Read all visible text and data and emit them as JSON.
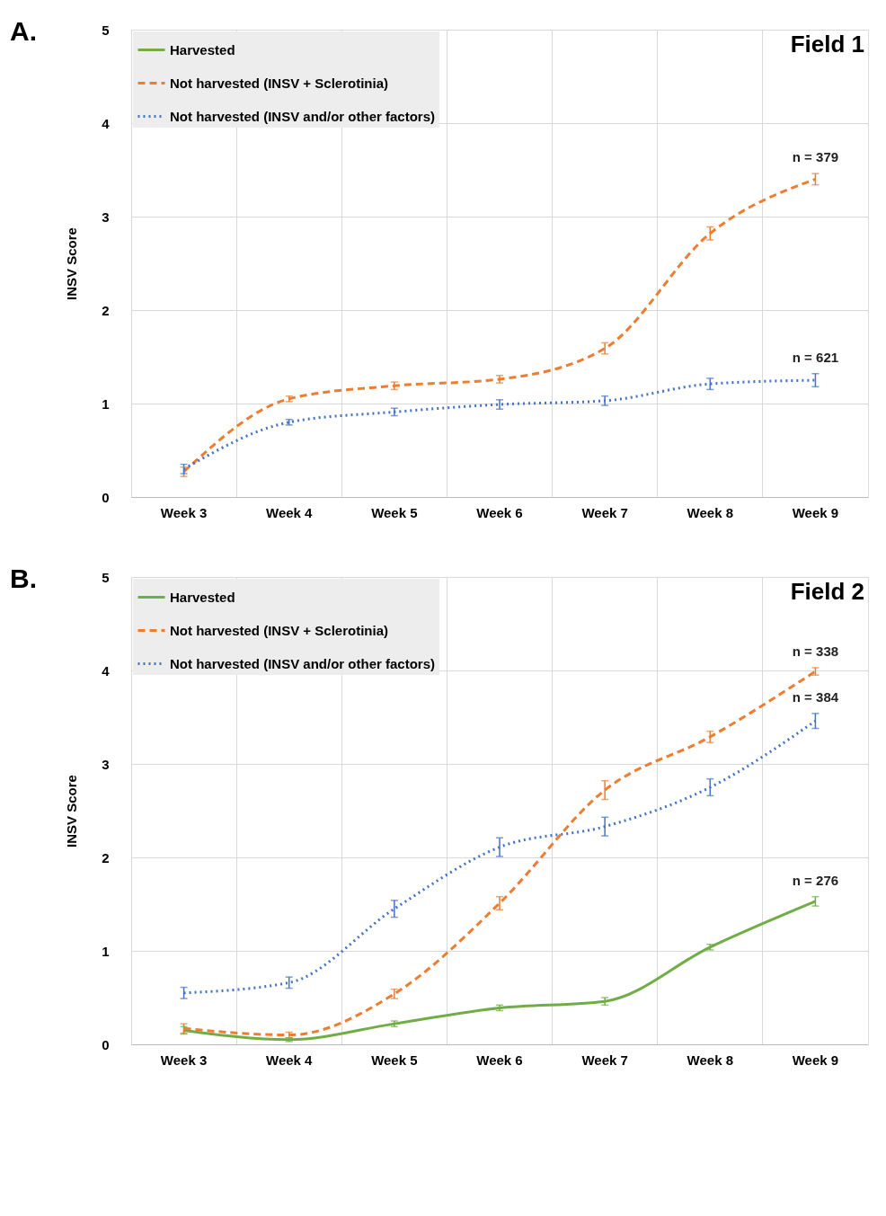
{
  "chart_data": [
    {
      "type": "line",
      "ylabel": "INSV Score",
      "categories": [
        "Week 3",
        "Week 4",
        "Week 5",
        "Week 6",
        "Week 7",
        "Week 8",
        "Week 9"
      ],
      "ylim": [
        0,
        5
      ],
      "yticks": [
        0,
        1,
        2,
        3,
        4,
        5
      ],
      "grid": true,
      "legend": "top left",
      "marker": "none",
      "series": [
        {
          "name": "Harvested",
          "color": "#70ad47",
          "line_style": "solid",
          "values": [
            null,
            null,
            null,
            null,
            null,
            null,
            null
          ]
        },
        {
          "name": "Not harvested (INSV + Sclerotinia)",
          "color": "#ed7d31",
          "line_style": "dashed",
          "values": [
            0.27,
            1.05,
            1.19,
            1.26,
            1.59,
            2.82,
            3.4
          ],
          "errors": [
            0.05,
            0.03,
            0.04,
            0.04,
            0.06,
            0.07,
            0.06
          ]
        },
        {
          "name": "Not harvested (INSV and/or other factors)",
          "color": "#4472c4",
          "line_style": "dotted",
          "values": [
            0.3,
            0.8,
            0.91,
            0.99,
            1.03,
            1.21,
            1.25
          ],
          "errors": [
            0.05,
            0.03,
            0.04,
            0.05,
            0.05,
            0.06,
            0.07
          ]
        }
      ],
      "annotations": [
        "A.",
        "Field 1",
        "n = 379",
        "n = 621"
      ]
    },
    {
      "type": "line",
      "ylabel": "INSV Score",
      "categories": [
        "Week 3",
        "Week 4",
        "Week 5",
        "Week 6",
        "Week 7",
        "Week 8",
        "Week 9"
      ],
      "ylim": [
        0,
        5
      ],
      "yticks": [
        0,
        1,
        2,
        3,
        4,
        5
      ],
      "grid": true,
      "legend": "top left",
      "marker": "none",
      "series": [
        {
          "name": "Harvested",
          "color": "#70ad47",
          "line_style": "solid",
          "values": [
            0.15,
            0.05,
            0.22,
            0.39,
            0.46,
            1.04,
            1.53
          ],
          "errors": [
            0.04,
            0.02,
            0.03,
            0.03,
            0.04,
            0.03,
            0.05
          ]
        },
        {
          "name": "Not harvested (INSV + Sclerotinia)",
          "color": "#ed7d31",
          "line_style": "dashed",
          "values": [
            0.17,
            0.1,
            0.54,
            1.51,
            2.72,
            3.29,
            3.99
          ],
          "errors": [
            0.05,
            0.03,
            0.05,
            0.07,
            0.1,
            0.06,
            0.04
          ]
        },
        {
          "name": "Not harvested (INSV and/or other factors)",
          "color": "#4472c4",
          "line_style": "dotted",
          "values": [
            0.55,
            0.66,
            1.45,
            2.11,
            2.33,
            2.75,
            3.46
          ],
          "errors": [
            0.06,
            0.06,
            0.09,
            0.1,
            0.1,
            0.09,
            0.08
          ]
        }
      ],
      "annotations": [
        "B.",
        "Field 2",
        "n = 276",
        "n = 338",
        "n = 384"
      ]
    }
  ]
}
